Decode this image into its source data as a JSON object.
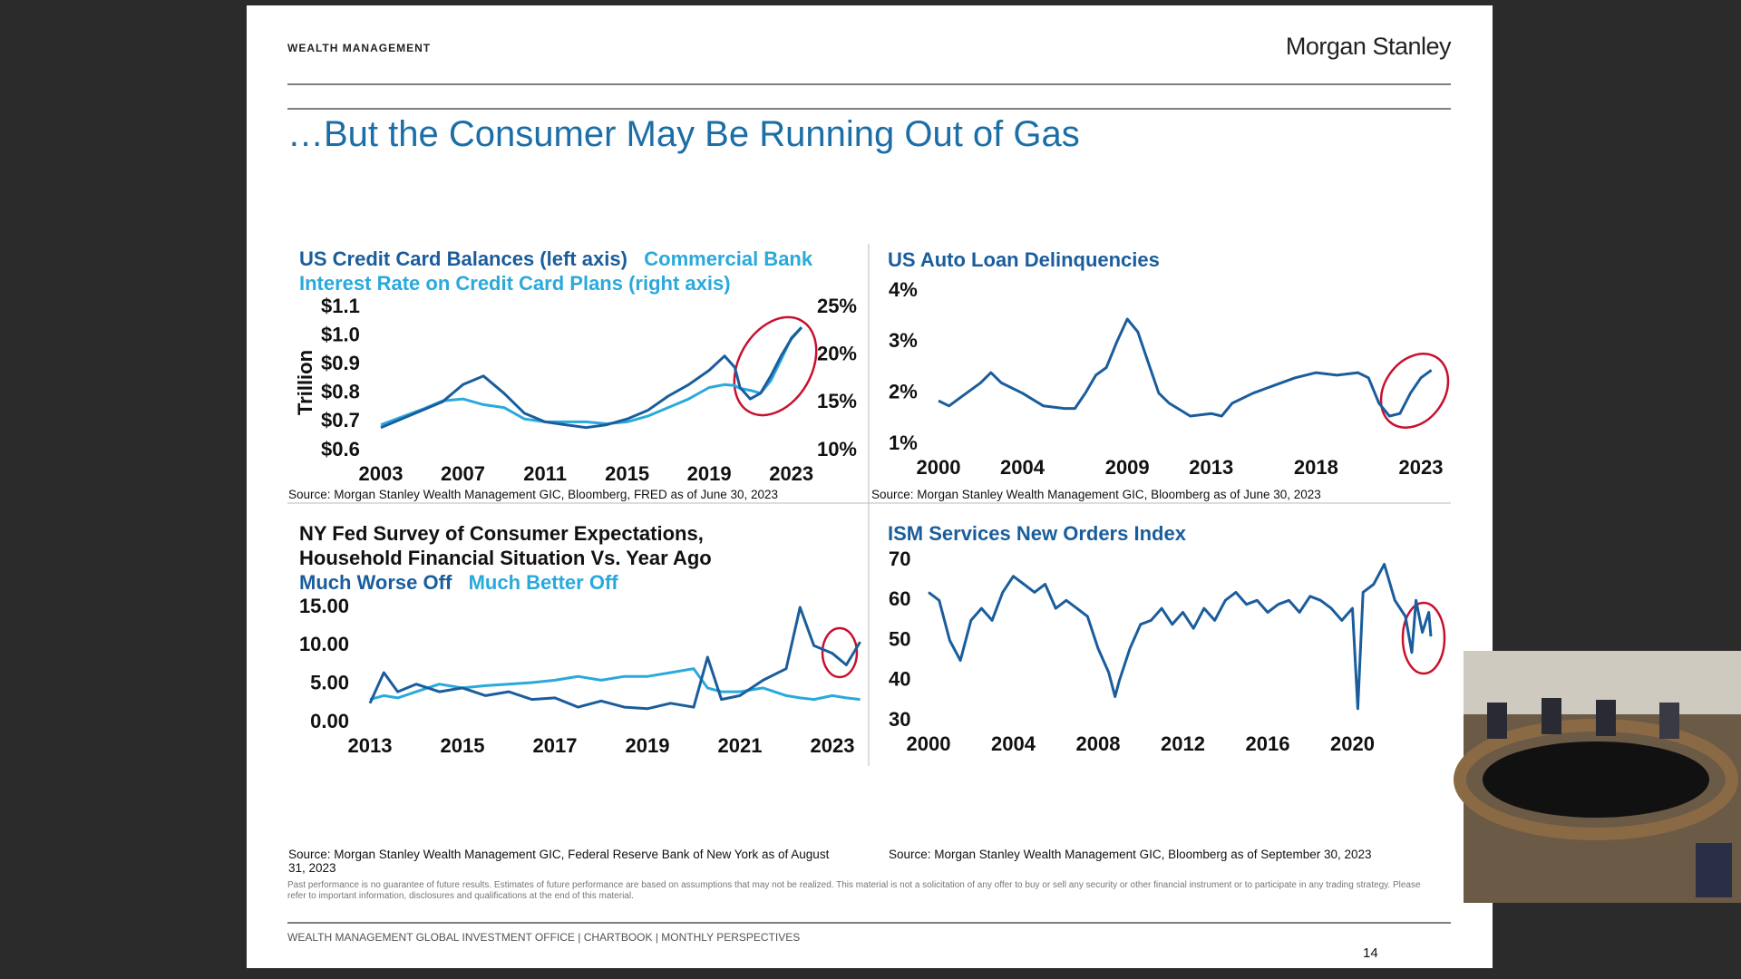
{
  "header": {
    "left": "WEALTH MANAGEMENT",
    "logo": "Morgan Stanley"
  },
  "title": "…But the Consumer May Be Running Out of Gas",
  "chart_data": [
    {
      "type": "line",
      "y_label": "Trillion",
      "x": [
        2003,
        2004,
        2005,
        2006,
        2007,
        2008,
        2009,
        2010,
        2011,
        2012,
        2013,
        2014,
        2015,
        2016,
        2017,
        2018,
        2019,
        2019.75,
        2020.25,
        2020.5,
        2021,
        2021.5,
        2022,
        2022.5,
        2023,
        2023.5
      ],
      "series": [
        {
          "name": "US Credit Card Balances (left axis)",
          "color": "#1a5d9c",
          "values": [
            0.68,
            0.71,
            0.74,
            0.77,
            0.83,
            0.86,
            0.8,
            0.73,
            0.7,
            0.69,
            0.68,
            0.69,
            0.71,
            0.74,
            0.79,
            0.83,
            0.88,
            0.93,
            0.89,
            0.82,
            0.78,
            0.8,
            0.86,
            0.93,
            0.99,
            1.03
          ]
        },
        {
          "name": "Commercial Bank Interest Rate on Credit Card Plans (right axis)",
          "color": "#29a9dc",
          "axis": "y2",
          "values": [
            12.7,
            13.5,
            14.3,
            15.2,
            15.4,
            14.8,
            14.5,
            13.3,
            13.0,
            13.0,
            13.0,
            12.8,
            13.0,
            13.6,
            14.5,
            15.4,
            16.6,
            16.9,
            16.8,
            16.5,
            16.3,
            16.0,
            17.3,
            19.5,
            21.8,
            22.9
          ]
        }
      ],
      "xlim": [
        2003,
        2023.5
      ],
      "xticks": [
        2003,
        2007,
        2011,
        2015,
        2019,
        2023
      ],
      "ylim": [
        0.6,
        1.1
      ],
      "yticks": [
        {
          "value": 0.6,
          "label": "$0.6"
        },
        {
          "value": 0.7,
          "label": "$0.7"
        },
        {
          "value": 0.8,
          "label": "$0.8"
        },
        {
          "value": 0.9,
          "label": "$0.9"
        },
        {
          "value": 1.0,
          "label": "$1.0"
        },
        {
          "value": 1.1,
          "label": "$1.1"
        }
      ],
      "y2lim": [
        10,
        25
      ],
      "y2ticks": [
        {
          "value": 10,
          "label": "10%"
        },
        {
          "value": 15,
          "label": "15%"
        },
        {
          "value": 20,
          "label": "20%"
        },
        {
          "value": 25,
          "label": "25%"
        }
      ],
      "source": "Source: Morgan Stanley Wealth Management GIC, Bloomberg, FRED as of June 30, 2023"
    },
    {
      "type": "line",
      "title": "US Auto Loan Delinquencies",
      "color": "#1a5d9c",
      "x": [
        2000,
        2000.5,
        2001,
        2002,
        2002.5,
        2003,
        2004,
        2005,
        2006,
        2006.5,
        2007,
        2007.5,
        2008,
        2008.5,
        2009,
        2009.5,
        2010,
        2010.5,
        2011,
        2012,
        2013,
        2013.5,
        2014,
        2015,
        2016,
        2017,
        2018,
        2019,
        2020,
        2020.5,
        2021,
        2021.5,
        2022,
        2022.5,
        2023,
        2023.5
      ],
      "values": [
        1.85,
        1.75,
        1.9,
        2.2,
        2.4,
        2.2,
        2.0,
        1.75,
        1.7,
        1.7,
        2.0,
        2.35,
        2.5,
        3.0,
        3.45,
        3.2,
        2.6,
        2.0,
        1.8,
        1.55,
        1.6,
        1.55,
        1.8,
        2.0,
        2.15,
        2.3,
        2.4,
        2.35,
        2.4,
        2.3,
        1.8,
        1.55,
        1.6,
        2.0,
        2.3,
        2.45
      ],
      "xlim": [
        2000,
        2023.5
      ],
      "xticks": [
        2000,
        2004,
        2009,
        2013,
        2018,
        2023
      ],
      "ylim": [
        1,
        4
      ],
      "yticks": [
        {
          "value": 1,
          "label": "1%"
        },
        {
          "value": 2,
          "label": "2%"
        },
        {
          "value": 3,
          "label": "3%"
        },
        {
          "value": 4,
          "label": "4%"
        }
      ],
      "source": "Source: Morgan Stanley Wealth Management GIC, Bloomberg as of June 30, 2023"
    },
    {
      "type": "line",
      "title": "NY Fed Survey of Consumer Expectations, Household Financial Situation Vs. Year Ago",
      "x": [
        2013,
        2013.3,
        2013.6,
        2014,
        2014.5,
        2015,
        2015.5,
        2016,
        2016.5,
        2017,
        2017.5,
        2018,
        2018.5,
        2019,
        2019.5,
        2020,
        2020.3,
        2020.6,
        2021,
        2021.5,
        2022,
        2022.3,
        2022.6,
        2023,
        2023.3,
        2023.6
      ],
      "series": [
        {
          "name": "Much Worse Off",
          "color": "#1a5d9c",
          "values": [
            2.5,
            6.5,
            4,
            5,
            4,
            4.5,
            3.5,
            4,
            3,
            3.2,
            2,
            2.8,
            2,
            1.8,
            2.5,
            2,
            8.5,
            3,
            3.5,
            5.5,
            7,
            15,
            10,
            9,
            7.5,
            10.5
          ]
        },
        {
          "name": "Much Better Off",
          "color": "#29a9dc",
          "values": [
            3,
            3.5,
            3.2,
            4,
            5,
            4.5,
            4.8,
            5,
            5.2,
            5.5,
            6,
            5.5,
            6,
            6,
            6.5,
            7,
            4.5,
            4,
            4,
            4.5,
            3.5,
            3.2,
            3,
            3.5,
            3.2,
            3
          ]
        }
      ],
      "xlim": [
        2013,
        2023.6
      ],
      "xticks": [
        2013,
        2015,
        2017,
        2019,
        2021,
        2023
      ],
      "ylim": [
        0,
        15
      ],
      "yticks": [
        {
          "value": 0,
          "label": "0.00"
        },
        {
          "value": 5,
          "label": "5.00"
        },
        {
          "value": 10,
          "label": "10.00"
        },
        {
          "value": 15,
          "label": "15.00"
        }
      ],
      "source": "Source: Morgan Stanley Wealth Management GIC, Federal Reserve Bank of New York as of August 31, 2023"
    },
    {
      "type": "line",
      "title": "ISM Services New Orders Index",
      "color": "#1a5d9c",
      "x": [
        2000,
        2000.5,
        2001,
        2001.5,
        2002,
        2002.5,
        2003,
        2003.5,
        2004,
        2004.5,
        2005,
        2005.5,
        2006,
        2006.5,
        2007,
        2007.5,
        2008,
        2008.5,
        2008.8,
        2009,
        2009.5,
        2010,
        2010.5,
        2011,
        2011.5,
        2012,
        2012.5,
        2013,
        2013.5,
        2014,
        2014.5,
        2015,
        2015.5,
        2016,
        2016.5,
        2017,
        2017.5,
        2018,
        2018.5,
        2019,
        2019.5,
        2020,
        2020.25,
        2020.5,
        2021,
        2021.5,
        2022,
        2022.5,
        2022.8,
        2023,
        2023.3,
        2023.6,
        2023.7
      ],
      "values": [
        62,
        60,
        50,
        45,
        55,
        58,
        55,
        62,
        66,
        64,
        62,
        64,
        58,
        60,
        58,
        56,
        48,
        42,
        36,
        40,
        48,
        54,
        55,
        58,
        54,
        57,
        53,
        58,
        55,
        60,
        62,
        59,
        60,
        57,
        59,
        60,
        57,
        61,
        60,
        58,
        55,
        58,
        33,
        62,
        64,
        69,
        60,
        56,
        47,
        60,
        52,
        57,
        51
      ],
      "xlim": [
        2000,
        2023.7
      ],
      "xticks": [
        2000,
        2004,
        2008,
        2012,
        2016,
        2020
      ],
      "ylim": [
        30,
        70
      ],
      "yticks": [
        30,
        40,
        50,
        60,
        70
      ],
      "source": "Source: Morgan Stanley Wealth Management GIC, Bloomberg as of September 30, 2023"
    }
  ],
  "disclaimer": "Past performance is no guarantee of future results. Estimates of future performance are based on assumptions that may not be realized. This material is not a solicitation of any offer to buy or sell any security or other financial instrument or to participate in any trading strategy. Please refer to important information, disclosures and qualifications at the end of this material.",
  "footer": "WEALTH MANAGEMENT GLOBAL INVESTMENT OFFICE | CHARTBOOK | MONTHLY PERSPECTIVES",
  "page": 14
}
